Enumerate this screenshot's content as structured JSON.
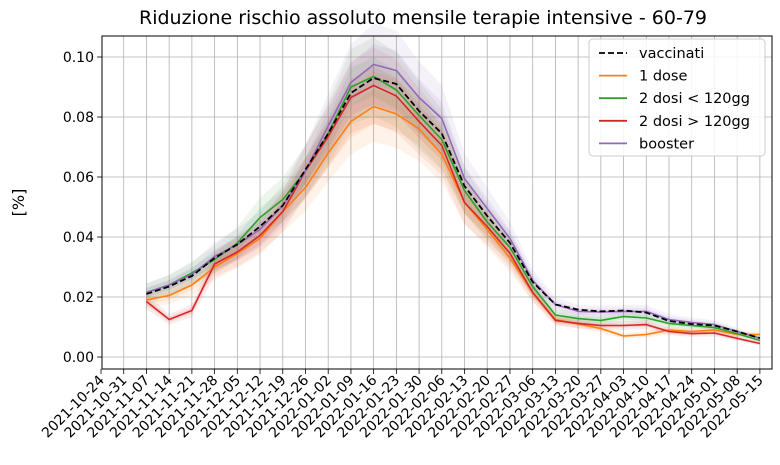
{
  "chart_data": {
    "type": "line",
    "title": "Riduzione rischio assoluto mensile terapie intensive - 60-79",
    "xlabel": "",
    "ylabel": "[%]",
    "ylim": [
      -0.004,
      0.107
    ],
    "yticks": [
      0.0,
      0.02,
      0.04,
      0.06,
      0.08,
      0.1
    ],
    "ytick_labels": [
      "0.00",
      "0.02",
      "0.04",
      "0.06",
      "0.08",
      "0.10"
    ],
    "categories": [
      "2021-10-24",
      "2021-10-31",
      "2021-11-07",
      "2021-11-14",
      "2021-11-21",
      "2021-11-28",
      "2021-12-05",
      "2021-12-12",
      "2021-12-19",
      "2021-12-26",
      "2022-01-02",
      "2022-01-09",
      "2022-01-16",
      "2022-01-23",
      "2022-01-30",
      "2022-02-06",
      "2022-02-13",
      "2022-02-20",
      "2022-02-27",
      "2022-03-06",
      "2022-03-13",
      "2022-03-20",
      "2022-03-27",
      "2022-04-03",
      "2022-04-10",
      "2022-04-17",
      "2022-04-24",
      "2022-05-01",
      "2022-05-08",
      "2022-05-15"
    ],
    "grid": true,
    "legend": "top-right",
    "series": [
      {
        "name": "vaccinati",
        "color": "#000000",
        "dashed": true,
        "band": false,
        "values": [
          null,
          null,
          0.021,
          0.0235,
          0.027,
          0.033,
          0.0375,
          0.0435,
          0.0505,
          0.0625,
          0.0745,
          0.088,
          0.093,
          0.091,
          0.082,
          0.0745,
          0.057,
          0.047,
          0.038,
          0.025,
          0.0175,
          0.0158,
          0.0152,
          0.0155,
          0.0148,
          0.012,
          0.011,
          0.0105,
          0.0085,
          0.0063
        ]
      },
      {
        "name": "1 dose",
        "color": "#ff7f0e",
        "dashed": false,
        "band": true,
        "values": [
          null,
          null,
          0.019,
          0.0205,
          0.024,
          0.03,
          0.0345,
          0.0395,
          0.0485,
          0.0565,
          0.068,
          0.0785,
          0.0835,
          0.081,
          0.076,
          0.0675,
          0.0515,
          0.0425,
          0.033,
          0.0215,
          0.0125,
          0.011,
          0.0095,
          0.007,
          0.0075,
          0.009,
          0.0085,
          0.009,
          0.0075,
          0.0075
        ]
      },
      {
        "name": "2 dosi < 120gg",
        "color": "#2ca02c",
        "dashed": false,
        "band": true,
        "values": [
          null,
          null,
          0.0215,
          0.024,
          0.028,
          0.0325,
          0.038,
          0.0465,
          0.0525,
          0.062,
          0.0745,
          0.09,
          0.0935,
          0.089,
          0.0805,
          0.0725,
          0.0555,
          0.045,
          0.0365,
          0.0235,
          0.014,
          0.0128,
          0.0122,
          0.0135,
          0.013,
          0.0112,
          0.0105,
          0.0098,
          0.0078,
          0.0055
        ]
      },
      {
        "name": "2 dosi > 120gg",
        "color": "#d62728",
        "dashed": false,
        "band": true,
        "values": [
          null,
          null,
          0.0185,
          0.0125,
          0.0155,
          0.031,
          0.035,
          0.0405,
          0.0485,
          0.062,
          0.0735,
          0.0865,
          0.0905,
          0.087,
          0.0785,
          0.0705,
          0.0515,
          0.0435,
          0.0345,
          0.0215,
          0.0122,
          0.0112,
          0.0105,
          0.0105,
          0.0108,
          0.0085,
          0.0078,
          0.008,
          0.0062,
          0.0045
        ]
      },
      {
        "name": "booster",
        "color": "#9467bd",
        "dashed": false,
        "band": true,
        "values": [
          null,
          null,
          0.0215,
          0.024,
          0.0275,
          0.0335,
          0.0375,
          0.0425,
          0.0505,
          0.062,
          0.077,
          0.0915,
          0.0975,
          0.0955,
          0.0865,
          0.0795,
          0.0595,
          0.0495,
          0.0395,
          0.0255,
          0.0175,
          0.0152,
          0.015,
          0.0152,
          0.0152,
          0.0125,
          0.0115,
          0.0108,
          0.0085,
          0.0063
        ]
      }
    ]
  }
}
